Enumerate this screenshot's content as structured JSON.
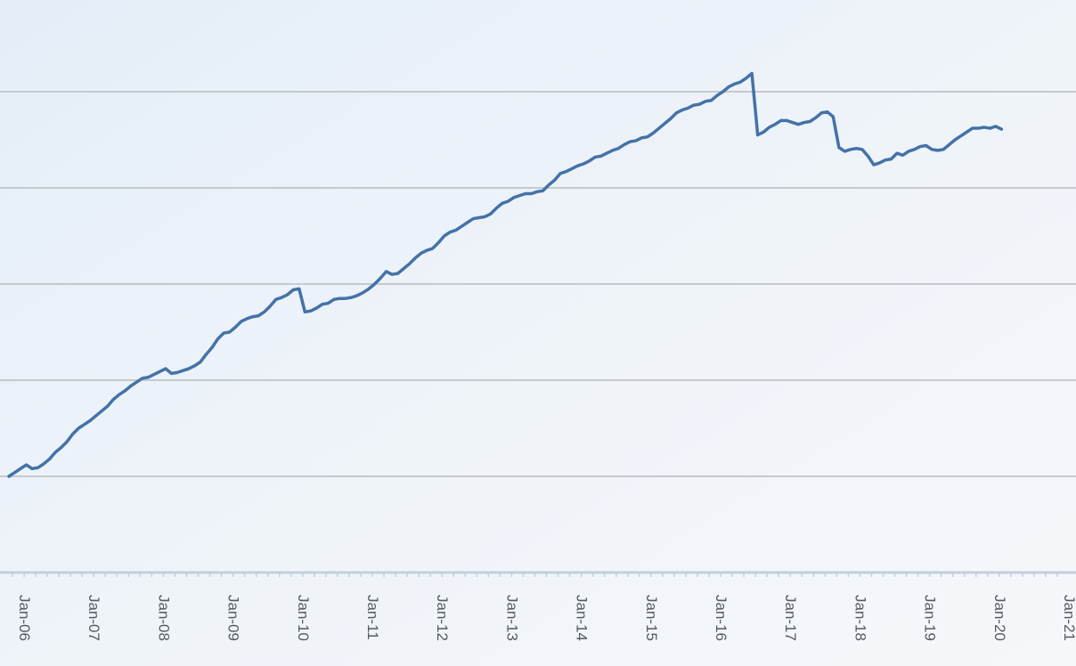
{
  "chart_data": {
    "type": "line",
    "title": "",
    "xlabel": "",
    "ylabel": "",
    "grid": true,
    "legend": "none",
    "line_color": "#4472a8",
    "x_tick_labels": [
      "Jan-06",
      "Jan-07",
      "Jan-08",
      "Jan-09",
      "Jan-10",
      "Jan-11",
      "Jan-12",
      "Jan-13",
      "Jan-14",
      "Jan-15",
      "Jan-16",
      "Jan-17",
      "Jan-18",
      "Jan-19",
      "Jan-20",
      "Jan-21"
    ],
    "y_axis": {
      "visible_tick_labels": false,
      "gridline_count": 5,
      "ylim": [
        0,
        6
      ]
    },
    "series": [
      {
        "x_start": "Jan-06",
        "interval": "monthly",
        "values": [
          1.0,
          1.04,
          1.08,
          1.12,
          1.08,
          1.09,
          1.13,
          1.18,
          1.25,
          1.3,
          1.36,
          1.44,
          1.5,
          1.54,
          1.58,
          1.63,
          1.68,
          1.73,
          1.8,
          1.85,
          1.89,
          1.94,
          1.98,
          2.02,
          2.03,
          2.06,
          2.09,
          2.12,
          2.07,
          2.08,
          2.1,
          2.12,
          2.15,
          2.19,
          2.27,
          2.34,
          2.43,
          2.49,
          2.5,
          2.55,
          2.61,
          2.64,
          2.66,
          2.67,
          2.71,
          2.77,
          2.84,
          2.86,
          2.89,
          2.94,
          2.95,
          2.71,
          2.72,
          2.75,
          2.79,
          2.8,
          2.84,
          2.85,
          2.85,
          2.86,
          2.88,
          2.91,
          2.95,
          3.0,
          3.06,
          3.13,
          3.1,
          3.11,
          3.16,
          3.21,
          3.27,
          3.32,
          3.35,
          3.37,
          3.43,
          3.5,
          3.54,
          3.56,
          3.6,
          3.64,
          3.68,
          3.69,
          3.7,
          3.73,
          3.79,
          3.84,
          3.86,
          3.9,
          3.92,
          3.94,
          3.94,
          3.96,
          3.97,
          4.03,
          4.08,
          4.15,
          4.17,
          4.2,
          4.23,
          4.25,
          4.28,
          4.32,
          4.33,
          4.36,
          4.39,
          4.41,
          4.45,
          4.48,
          4.49,
          4.52,
          4.53,
          4.57,
          4.62,
          4.67,
          4.72,
          4.78,
          4.81,
          4.83,
          4.86,
          4.87,
          4.9,
          4.91,
          4.96,
          5.0,
          5.05,
          5.08,
          5.1,
          5.14,
          5.19,
          4.55,
          4.58,
          4.63,
          4.66,
          4.7,
          4.7,
          4.68,
          4.66,
          4.68,
          4.69,
          4.73,
          4.78,
          4.79,
          4.74,
          4.42,
          4.38,
          4.4,
          4.41,
          4.4,
          4.33,
          4.24,
          4.26,
          4.29,
          4.3,
          4.36,
          4.34,
          4.38,
          4.4,
          4.43,
          4.44,
          4.4,
          4.39,
          4.4,
          4.45,
          4.5,
          4.54,
          4.58,
          4.62,
          4.62,
          4.63,
          4.62,
          4.64,
          4.61
        ]
      }
    ]
  }
}
